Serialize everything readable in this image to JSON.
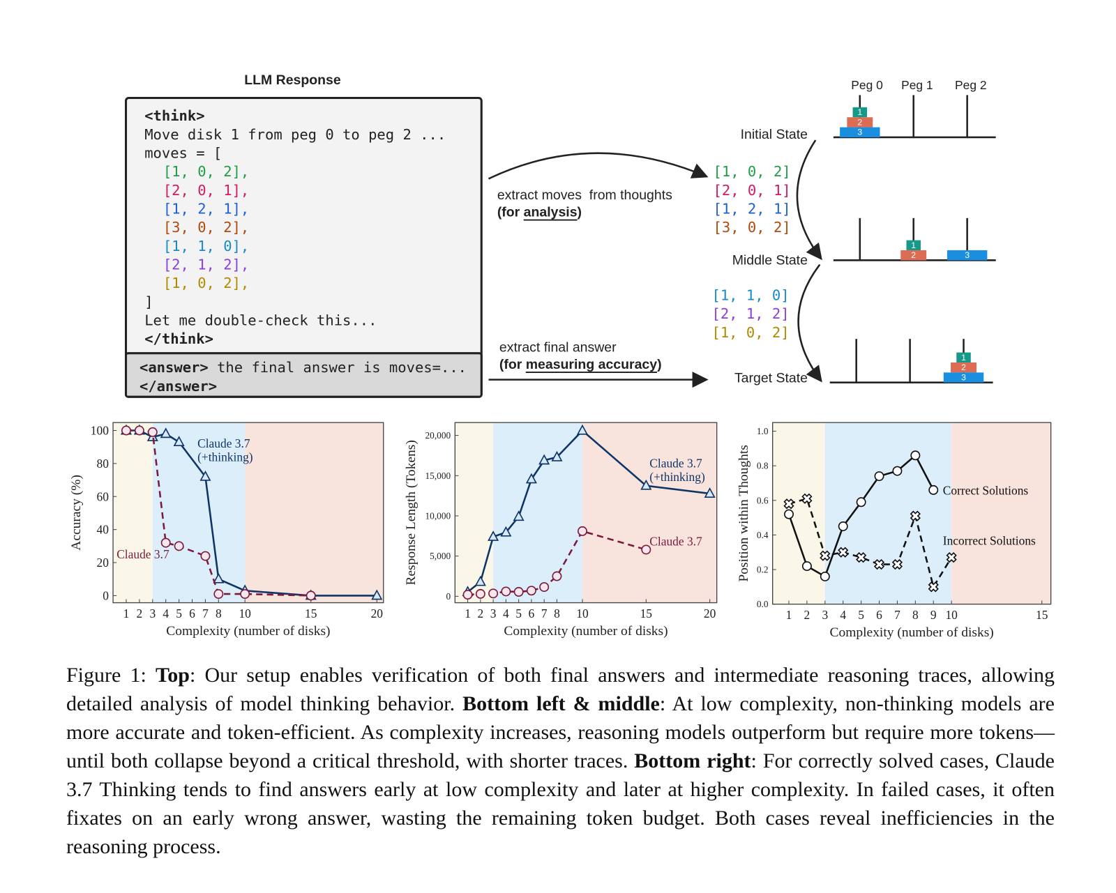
{
  "llm_response": {
    "title": "LLM Response",
    "think_lines": [
      {
        "text": "<think>",
        "bold": true
      },
      {
        "text": "Move disk 1 from peg 0 to peg 2 ..."
      },
      {
        "text": "moves = ["
      },
      {
        "text": "[1, 0, 2],",
        "color": "#1f9d45"
      },
      {
        "text": "[2, 0, 1],",
        "color": "#d01a63"
      },
      {
        "text": "[1, 2, 1],",
        "color": "#1d5fd8"
      },
      {
        "text": "[3, 0, 2],",
        "color": "#b04a0c"
      },
      {
        "text": "[1, 1, 0],",
        "color": "#158bc8"
      },
      {
        "text": "[2, 1, 2],",
        "color": "#8a3ee0"
      },
      {
        "text": "[1, 0, 2],",
        "color": "#b08a00"
      },
      {
        "text": "]"
      },
      {
        "text": "Let me double-check this..."
      },
      {
        "text": "</think>",
        "bold": true
      }
    ],
    "answer_lines": [
      [
        {
          "text": "<answer>",
          "bold": true
        },
        {
          "text": " the final answer is moves=..."
        }
      ],
      [
        {
          "text": "</answer>",
          "bold": true
        }
      ]
    ]
  },
  "extract_thoughts": {
    "label": "extract moves  from thoughts",
    "purpose": [
      {
        "text": "(for "
      },
      {
        "text": "analysis",
        "underline": true
      },
      {
        "text": ")"
      }
    ],
    "moves": [
      {
        "text": "[1, 0, 2]",
        "color": "#1f9d45"
      },
      {
        "text": "[2, 0, 1]",
        "color": "#d01a63"
      },
      {
        "text": "[1, 2, 1]",
        "color": "#1d5fd8"
      },
      {
        "text": "[3, 0, 2]",
        "color": "#b04a0c"
      }
    ]
  },
  "remaining_moves": [
    {
      "text": "[1, 1, 0]",
      "color": "#158bc8"
    },
    {
      "text": "[2, 1, 2]",
      "color": "#8a3ee0"
    },
    {
      "text": "[1, 0, 2]",
      "color": "#b08a00"
    }
  ],
  "extract_answer": {
    "label": "extract final answer",
    "purpose": [
      {
        "text": "(for "
      },
      {
        "text": "measuring accuracy",
        "underline": true
      },
      {
        "text": ")"
      }
    ]
  },
  "hanoi": {
    "pegs": [
      "Peg 0",
      "Peg 1",
      "Peg 2"
    ],
    "disk_colors": [
      "#17998a",
      "#dc6d54",
      "#1a8fe0"
    ],
    "states": [
      {
        "label": "Initial State",
        "disks": [
          "1",
          "2",
          "3"
        ]
      },
      {
        "label": "Middle State",
        "disks": [
          "1",
          "2",
          "3"
        ]
      },
      {
        "label": "Target State",
        "disks": [
          "1",
          "2",
          "3"
        ]
      }
    ]
  },
  "chart_data": [
    {
      "type": "line",
      "xlabel": "Complexity (number of disks)",
      "ylabel": "Accuracy (%)",
      "xlim": [
        0,
        20.5
      ],
      "ylim": [
        -4.3,
        104.8
      ],
      "xticks": [
        1,
        2,
        3,
        4,
        5,
        6,
        7,
        8,
        10,
        15,
        20
      ],
      "yticks": [
        0,
        20,
        40,
        60,
        80,
        100
      ],
      "region_breaks": [
        3,
        10
      ],
      "region_colors": [
        "#fbf7e8",
        "#ddeefb",
        "#f9e3dd"
      ],
      "series": [
        {
          "name": [
            "Claude 3.7",
            "(+thinking)"
          ],
          "color": "#0e3566",
          "marker": "triangle",
          "marker_fill": "#d7e8f7",
          "dash": false,
          "x": [
            1,
            2,
            3,
            4,
            5,
            7,
            8,
            10,
            15,
            20
          ],
          "values": [
            100,
            100,
            96,
            98,
            93,
            72,
            10,
            3,
            0,
            0
          ]
        },
        {
          "name": [
            "Claude 3.7"
          ],
          "color": "#7a1b3d",
          "marker": "circle",
          "marker_fill": "#f7e6ec",
          "dash": true,
          "x": [
            1,
            2,
            3,
            4,
            5,
            7,
            8,
            10,
            15
          ],
          "values": [
            100,
            100,
            99,
            32,
            30,
            24,
            1,
            1,
            0
          ]
        }
      ]
    },
    {
      "type": "line",
      "xlabel": "Complexity (number of disks)",
      "ylabel": "Response Length (Tokens)",
      "xlim": [
        0,
        20.55
      ],
      "ylim": [
        -800,
        21600
      ],
      "xticks": [
        1,
        2,
        3,
        4,
        5,
        6,
        7,
        8,
        10,
        15,
        20
      ],
      "yticks": [
        0,
        {
          "value": 5000,
          "label": "5,000"
        },
        {
          "value": 10000,
          "label": "10,000"
        },
        {
          "value": 15000,
          "label": "15,000"
        },
        {
          "value": 20000,
          "label": "20,000"
        }
      ],
      "region_breaks": [
        3,
        10
      ],
      "region_colors": [
        "#fbf7e8",
        "#ddeefb",
        "#f9e3dd"
      ],
      "series": [
        {
          "name": [
            "Claude 3.7",
            "(+thinking)"
          ],
          "color": "#0e3566",
          "marker": "triangle",
          "marker_fill": "#d7e8f7",
          "dash": false,
          "x": [
            1,
            2,
            3,
            4,
            5,
            6,
            7,
            8,
            10,
            15,
            20
          ],
          "values": [
            540,
            1800,
            7400,
            7950,
            9900,
            14550,
            16900,
            17300,
            20600,
            13750,
            12770
          ]
        },
        {
          "name": [
            "Claude 3.7"
          ],
          "color": "#7a1b3d",
          "marker": "circle",
          "marker_fill": "#f7e6ec",
          "dash": true,
          "x": [
            1,
            2,
            3,
            4,
            5,
            6,
            7,
            8,
            10,
            15
          ],
          "values": [
            200,
            300,
            350,
            600,
            550,
            700,
            1150,
            2500,
            8100,
            5800
          ]
        }
      ]
    },
    {
      "type": "line",
      "xlabel": "Complexity (number of disks)",
      "ylabel": "Position within Thoughts",
      "xlim": [
        0.1,
        15.5
      ],
      "ylim": [
        0,
        1.05
      ],
      "xticks": [
        1,
        2,
        3,
        4,
        5,
        6,
        7,
        8,
        9,
        10,
        15
      ],
      "yticks": [
        {
          "value": 0,
          "label": "0.0"
        },
        0.2,
        0.4,
        0.6,
        0.8,
        {
          "value": 1,
          "label": "1.0"
        }
      ],
      "region_breaks": [
        3,
        10
      ],
      "region_colors": [
        "#fbf7e8",
        "#ddeefb",
        "#f9e3dd"
      ],
      "series": [
        {
          "name": [
            "Correct Solutions"
          ],
          "color": "#111111",
          "marker": "circle",
          "marker_fill": "#ffffff",
          "dash": false,
          "x": [
            1,
            2,
            3,
            4,
            5,
            6,
            7,
            8,
            9
          ],
          "values": [
            0.52,
            0.22,
            0.16,
            0.45,
            0.59,
            0.74,
            0.77,
            0.86,
            0.66
          ]
        },
        {
          "name": [
            "Incorrect Solutions"
          ],
          "color": "#111111",
          "marker": "cross",
          "marker_fill": "#ffffff",
          "dash": true,
          "x": [
            1,
            2,
            3,
            4,
            5,
            6,
            7,
            8,
            9,
            10
          ],
          "values": [
            0.58,
            0.61,
            0.28,
            0.3,
            0.27,
            0.23,
            0.23,
            0.51,
            0.1,
            0.27
          ]
        }
      ]
    }
  ],
  "caption": [
    {
      "text": "Figure 1: "
    },
    {
      "text": "Top",
      "bold": true
    },
    {
      "text": ": Our setup enables verification of both final answers and intermediate reasoning traces, allowing detailed analysis of model thinking behavior. "
    },
    {
      "text": "Bottom left & middle",
      "bold": true
    },
    {
      "text": ": At low complexity, non-thinking models are more accurate and token-efficient. As complexity increases, reasoning models outperform but require more tokens—until both collapse beyond a critical threshold, with shorter traces. "
    },
    {
      "text": "Bottom right",
      "bold": true
    },
    {
      "text": ": For correctly solved cases, Claude 3.7 Thinking tends to find answers early at low complexity and later at higher complexity. In failed cases, it often fixates on an early wrong answer, wasting the remaining token budget. Both cases reveal inefficiencies in the reasoning process."
    }
  ]
}
